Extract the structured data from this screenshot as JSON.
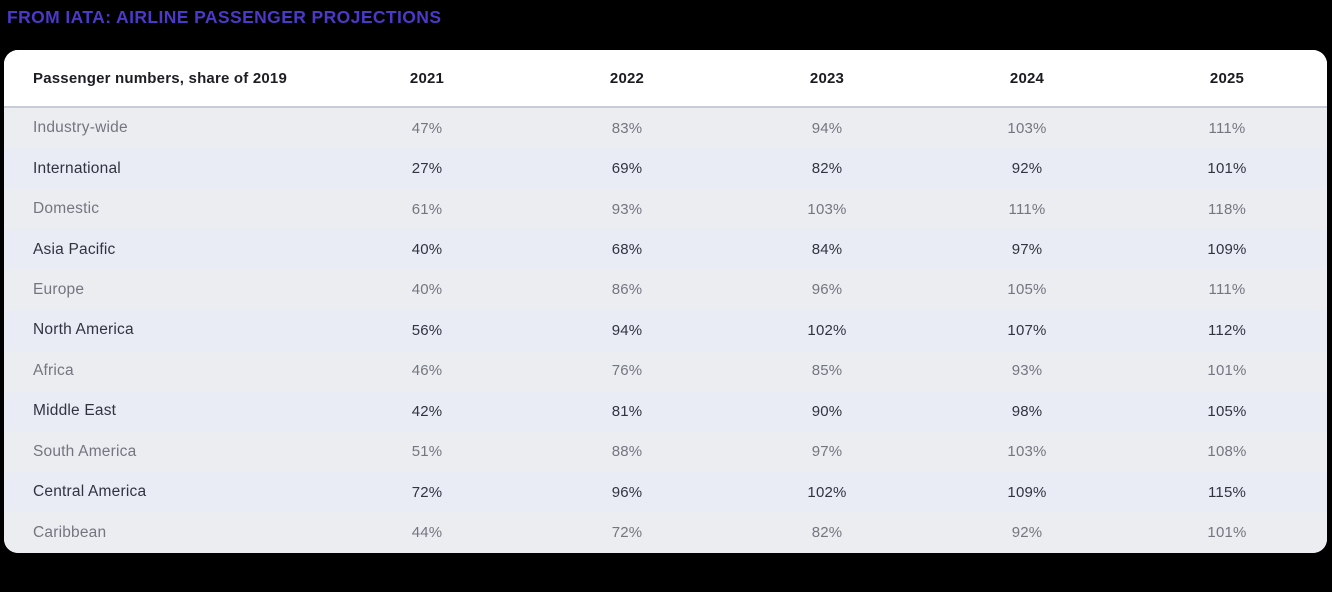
{
  "page_title": "FROM IATA: AIRLINE PASSENGER PROJECTIONS",
  "colors": {
    "page_background": "#000000",
    "title_accent": "#4c38c9",
    "card_background": "#ffffff",
    "header_divider": "#c8ccd7",
    "row_odd_background": "#ebedf1",
    "row_even_background": "#e9ebf5",
    "row_odd_text": "#73767f",
    "row_even_text": "#31343f",
    "header_text": "#1d1e24"
  },
  "table": {
    "header_label": "Passenger numbers, share of 2019",
    "years": [
      "2021",
      "2022",
      "2023",
      "2024",
      "2025"
    ],
    "rows": [
      {
        "label": "Industry-wide",
        "values": [
          "47%",
          "83%",
          "94%",
          "103%",
          "111%"
        ]
      },
      {
        "label": "International",
        "values": [
          "27%",
          "69%",
          "82%",
          "92%",
          "101%"
        ]
      },
      {
        "label": "Domestic",
        "values": [
          "61%",
          "93%",
          "103%",
          "111%",
          "118%"
        ]
      },
      {
        "label": "Asia Pacific",
        "values": [
          "40%",
          "68%",
          "84%",
          "97%",
          "109%"
        ]
      },
      {
        "label": "Europe",
        "values": [
          "40%",
          "86%",
          "96%",
          "105%",
          "111%"
        ]
      },
      {
        "label": "North America",
        "values": [
          "56%",
          "94%",
          "102%",
          "107%",
          "112%"
        ]
      },
      {
        "label": "Africa",
        "values": [
          "46%",
          "76%",
          "85%",
          "93%",
          "101%"
        ]
      },
      {
        "label": "Middle East",
        "values": [
          "42%",
          "81%",
          "90%",
          "98%",
          "105%"
        ]
      },
      {
        "label": "South America",
        "values": [
          "51%",
          "88%",
          "97%",
          "103%",
          "108%"
        ]
      },
      {
        "label": "Central America",
        "values": [
          "72%",
          "96%",
          "102%",
          "109%",
          "115%"
        ]
      },
      {
        "label": "Caribbean",
        "values": [
          "44%",
          "72%",
          "82%",
          "92%",
          "101%"
        ]
      }
    ]
  },
  "chart_data": {
    "type": "table",
    "title": "FROM IATA: AIRLINE PASSENGER PROJECTIONS",
    "subtitle": "Passenger numbers, share of 2019",
    "columns": [
      "Passenger numbers, share of 2019",
      "2021",
      "2022",
      "2023",
      "2024",
      "2025"
    ],
    "unit": "percent of 2019 passenger numbers",
    "rows": [
      {
        "category": "Industry-wide",
        "values_pct": [
          47,
          83,
          94,
          103,
          111
        ]
      },
      {
        "category": "International",
        "values_pct": [
          27,
          69,
          82,
          92,
          101
        ]
      },
      {
        "category": "Domestic",
        "values_pct": [
          61,
          93,
          103,
          111,
          118
        ]
      },
      {
        "category": "Asia Pacific",
        "values_pct": [
          40,
          68,
          84,
          97,
          109
        ]
      },
      {
        "category": "Europe",
        "values_pct": [
          40,
          86,
          96,
          105,
          111
        ]
      },
      {
        "category": "North America",
        "values_pct": [
          56,
          94,
          102,
          107,
          112
        ]
      },
      {
        "category": "Africa",
        "values_pct": [
          46,
          76,
          85,
          93,
          101
        ]
      },
      {
        "category": "Middle East",
        "values_pct": [
          42,
          81,
          90,
          98,
          105
        ]
      },
      {
        "category": "South America",
        "values_pct": [
          51,
          88,
          97,
          103,
          108
        ]
      },
      {
        "category": "Central America",
        "values_pct": [
          72,
          96,
          102,
          109,
          115
        ]
      },
      {
        "category": "Caribbean",
        "values_pct": [
          44,
          72,
          82,
          92,
          101
        ]
      }
    ]
  }
}
